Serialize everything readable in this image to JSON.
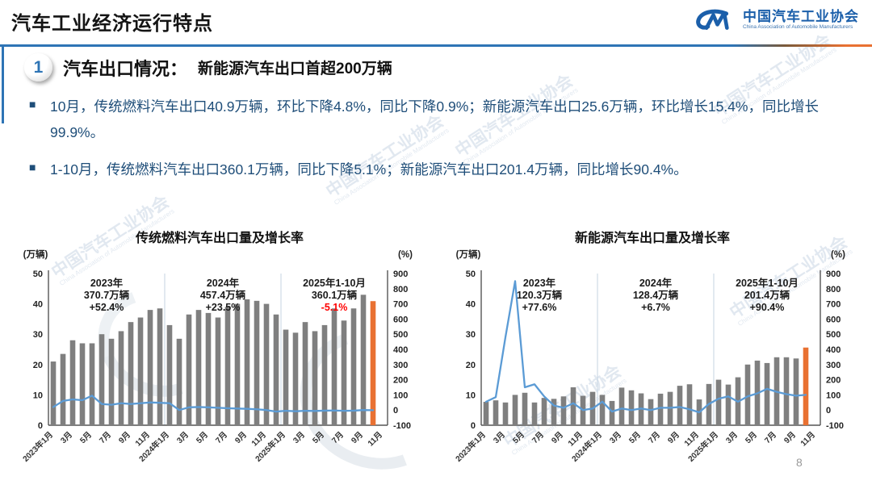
{
  "header": {
    "title": "汽车工业经济运行特点",
    "logo": {
      "name_cn": "中国汽车工业协会",
      "name_en": "China Association of Automobile Manufacturers"
    }
  },
  "section": {
    "number": "1",
    "title": "汽车出口情况：",
    "subtitle": "新能源汽车出口首超200万辆"
  },
  "bullet_marker": "■",
  "bullets": [
    "10月，传统燃料汽车出口40.9万辆，环比下降4.8%，同比下降0.9%；新能源汽车出口25.6万辆，环比增长15.4%，同比增长99.9%。",
    "1-10月，传统燃料汽车出口360.1万辆，同比下降5.1%；新能源汽车出口201.4万辆，同比增长90.4%。"
  ],
  "watermark": {
    "cn": "中国汽车工业协会",
    "en": "China Association of Automobile Manufacturers"
  },
  "page_number": "8",
  "colors": {
    "accent_blue": "#2E74B5",
    "navy_text": "#1F4E79",
    "bar_grey": "#7F7F7F",
    "highlight_orange": "#E97132",
    "line_blue": "#5B9BD5",
    "negative_red": "#FF0000",
    "logo_blue": "#1B5FAA"
  },
  "chart_data": [
    {
      "type": "bar+line",
      "title": "传统燃料汽车出口量及增长率",
      "unit_left": "(万辆)",
      "unit_right": "(%)",
      "left_axis": {
        "range": [
          0,
          50
        ],
        "ticks": [
          0,
          10,
          20,
          30,
          40,
          50
        ]
      },
      "right_axis": {
        "range": [
          -100,
          900
        ],
        "ticks": [
          -100,
          0,
          100,
          200,
          300,
          400,
          500,
          600,
          700,
          800,
          900
        ]
      },
      "x": [
        "2023年1月",
        "2023年2月",
        "2023年3月",
        "2023年4月",
        "2023年5月",
        "2023年6月",
        "2023年7月",
        "2023年8月",
        "2023年9月",
        "2023年10月",
        "2023年11月",
        "2023年12月",
        "2024年1月",
        "2024年2月",
        "2024年3月",
        "2024年4月",
        "2024年5月",
        "2024年6月",
        "2024年7月",
        "2024年8月",
        "2024年9月",
        "2024年10月",
        "2024年11月",
        "2024年12月",
        "2025年1月",
        "2025年2月",
        "2025年3月",
        "2025年4月",
        "2025年5月",
        "2025年6月",
        "2025年7月",
        "2025年8月",
        "2025年9月",
        "2025年10月"
      ],
      "x_tick_labels": [
        "2023年1月",
        "3月",
        "5月",
        "7月",
        "9月",
        "11月",
        "2024年1月",
        "3月",
        "5月",
        "7月",
        "9月",
        "11月",
        "2025年1月",
        "3月",
        "5月",
        "7月",
        "9月",
        "11月"
      ],
      "bars": {
        "name": "出口量（万辆）",
        "color": "#7F7F7F",
        "highlight_last_color": "#E97132",
        "values": [
          21,
          23.5,
          28,
          27,
          27,
          30,
          28.5,
          31,
          34,
          35.5,
          38,
          38.5,
          33,
          28.5,
          36.5,
          38,
          37,
          35.5,
          39,
          40,
          41.5,
          41,
          40,
          36.5,
          31.5,
          30.5,
          34,
          31,
          33,
          38.5,
          34.5,
          38.5,
          43,
          40.9
        ]
      },
      "line": {
        "name": "增长率（%）",
        "color": "#5B9BD5",
        "values": [
          20,
          60,
          70,
          65,
          95,
          40,
          35,
          45,
          40,
          45,
          50,
          48,
          45,
          0,
          18,
          20,
          18,
          15,
          12,
          10,
          8,
          5,
          0,
          -10,
          -5,
          -8,
          -5,
          -6,
          -4,
          -3,
          -5,
          -4,
          0,
          -1
        ]
      },
      "dividers_after_index": [
        11,
        23
      ],
      "annotations": [
        {
          "label": "2023年",
          "value": "370.7万辆",
          "growth": "+52.4%",
          "growth_color": "#1a1a1a"
        },
        {
          "label": "2024年",
          "value": "457.4万辆",
          "growth": "+23.5%",
          "growth_color": "#1a1a1a"
        },
        {
          "label": "2025年1-10月",
          "value": "360.1万辆",
          "growth": "-5.1%",
          "growth_color": "#FF0000"
        }
      ]
    },
    {
      "type": "bar+line",
      "title": "新能源汽车出口量及增长率",
      "unit_left": "(万辆)",
      "unit_right": "(%)",
      "left_axis": {
        "range": [
          0,
          50
        ],
        "ticks": [
          0,
          10,
          20,
          30,
          40,
          50
        ]
      },
      "right_axis": {
        "range": [
          -100,
          900
        ],
        "ticks": [
          -100,
          0,
          100,
          200,
          300,
          400,
          500,
          600,
          700,
          800,
          900
        ]
      },
      "x": [
        "2023年1月",
        "2023年2月",
        "2023年3月",
        "2023年4月",
        "2023年5月",
        "2023年6月",
        "2023年7月",
        "2023年8月",
        "2023年9月",
        "2023年10月",
        "2023年11月",
        "2023年12月",
        "2024年1月",
        "2024年2月",
        "2024年3月",
        "2024年4月",
        "2024年5月",
        "2024年6月",
        "2024年7月",
        "2024年8月",
        "2024年9月",
        "2024年10月",
        "2024年11月",
        "2024年12月",
        "2025年1月",
        "2025年2月",
        "2025年3月",
        "2025年4月",
        "2025年5月",
        "2025年6月",
        "2025年7月",
        "2025年8月",
        "2025年9月",
        "2025年10月"
      ],
      "x_tick_labels": [
        "2023年1月",
        "3月",
        "5月",
        "7月",
        "9月",
        "11月",
        "2024年1月",
        "3月",
        "5月",
        "7月",
        "9月",
        "11月",
        "2025年1月",
        "3月",
        "5月",
        "7月",
        "9月",
        "11月"
      ],
      "bars": {
        "name": "出口量（万辆）",
        "color": "#7F7F7F",
        "highlight_last_color": "#E97132",
        "values": [
          7.7,
          8.2,
          7.5,
          10,
          10.7,
          7.5,
          9,
          8.7,
          9.5,
          12.5,
          9.7,
          11,
          10,
          8,
          12.4,
          11.5,
          10.5,
          8.6,
          10.4,
          11,
          13,
          13.5,
          8.5,
          13.6,
          15,
          13.4,
          15.8,
          20,
          21.3,
          20.5,
          22.4,
          22.4,
          22,
          25.6
        ]
      },
      "line": {
        "name": "增长率（%）",
        "color": "#5B9BD5",
        "values": [
          55,
          85,
          480,
          850,
          150,
          170,
          90,
          30,
          15,
          45,
          0,
          10,
          55,
          -10,
          10,
          0,
          10,
          0,
          15,
          15,
          20,
          5,
          -15,
          40,
          75,
          90,
          55,
          90,
          110,
          140,
          120,
          105,
          95,
          100
        ]
      },
      "dividers_after_index": [
        11,
        23
      ],
      "annotations": [
        {
          "label": "2023年",
          "value": "120.3万辆",
          "growth": "+77.6%",
          "growth_color": "#1a1a1a"
        },
        {
          "label": "2024年",
          "value": "128.4万辆",
          "growth": "+6.7%",
          "growth_color": "#1a1a1a"
        },
        {
          "label": "2025年1-10月",
          "value": "201.4万辆",
          "growth": "+90.4%",
          "growth_color": "#1a1a1a"
        }
      ]
    }
  ]
}
